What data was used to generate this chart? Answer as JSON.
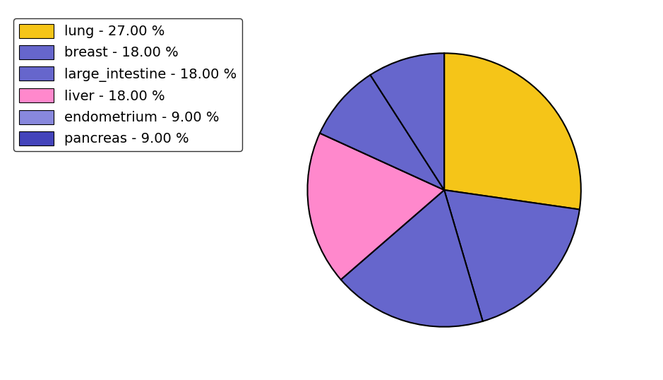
{
  "labels": [
    "lung",
    "breast",
    "large_intestine",
    "liver",
    "endometrium",
    "pancreas"
  ],
  "values": [
    27,
    18,
    18,
    18,
    9,
    9
  ],
  "colors": [
    "#F5C518",
    "#6666CC",
    "#6666CC",
    "#FF88CC",
    "#6666CC",
    "#6666CC"
  ],
  "legend_colors": [
    "#F5C518",
    "#6666CC",
    "#6666CC",
    "#FF88CC",
    "#8888DD",
    "#4444BB"
  ],
  "legend_labels": [
    "lung - 27.00 %",
    "breast - 18.00 %",
    "large_intestine - 18.00 %",
    "liver - 18.00 %",
    "endometrium - 9.00 %",
    "pancreas - 9.00 %"
  ],
  "startangle": 90,
  "figsize": [
    9.39,
    5.38
  ],
  "dpi": 100,
  "legend_fontsize": 14,
  "background_color": "#ffffff"
}
